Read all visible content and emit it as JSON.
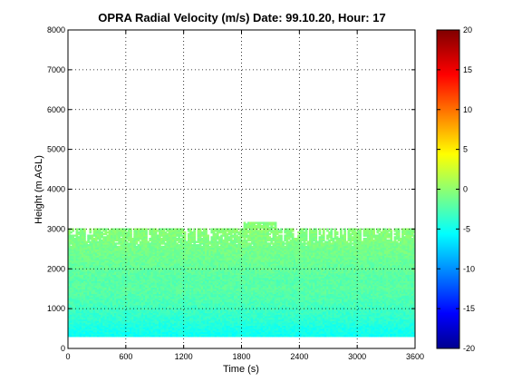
{
  "chart_data": {
    "type": "heatmap",
    "title": "OPRA Radial Velocity (m/s)  Date: 99.10.20, Hour: 17",
    "xlabel": "Time (s)",
    "ylabel": "Height (m AGL)",
    "xlim": [
      0,
      3600
    ],
    "ylim": [
      0,
      8000
    ],
    "xticks": [
      0,
      600,
      1200,
      1800,
      2400,
      3000,
      3600
    ],
    "xtick_labels": [
      "0",
      "600",
      "1200",
      "1800",
      "2400",
      "3000",
      "3600"
    ],
    "yticks": [
      0,
      1000,
      2000,
      3000,
      4000,
      5000,
      6000,
      7000,
      8000
    ],
    "ytick_labels": [
      "0",
      "1000",
      "2000",
      "3000",
      "4000",
      "5000",
      "6000",
      "7000",
      "8000"
    ],
    "grid": true,
    "colorbar": {
      "range": [
        -20,
        20
      ],
      "ticks": [
        20,
        15,
        10,
        5,
        0,
        -5,
        -10,
        -15,
        -20
      ],
      "tick_labels": [
        "20",
        "15",
        "10",
        "5",
        "0",
        "-5",
        "-10",
        "-15",
        "-20"
      ],
      "colormap": "jet"
    },
    "data_extent": {
      "x": [
        0,
        3600
      ],
      "height_bottom_m": 300,
      "height_top_m": 3000,
      "max_height_m": 3150
    },
    "velocity_profile": {
      "height_m": [
        300,
        500,
        700,
        900,
        1100,
        1300,
        1500,
        1700,
        1900,
        2100,
        2300,
        2500,
        2700,
        2900,
        3100
      ],
      "velocity_ms": [
        -4.5,
        -4,
        -3.2,
        -2.8,
        -2.2,
        -1.8,
        -1.4,
        -1.6,
        -1.2,
        -1.0,
        -0.6,
        -0.4,
        0.0,
        0.2,
        0.3
      ]
    }
  },
  "colors": {
    "jet_stops": [
      "#000080",
      "#0000ff",
      "#00ffff",
      "#ffff00",
      "#ff0000",
      "#800000"
    ]
  }
}
